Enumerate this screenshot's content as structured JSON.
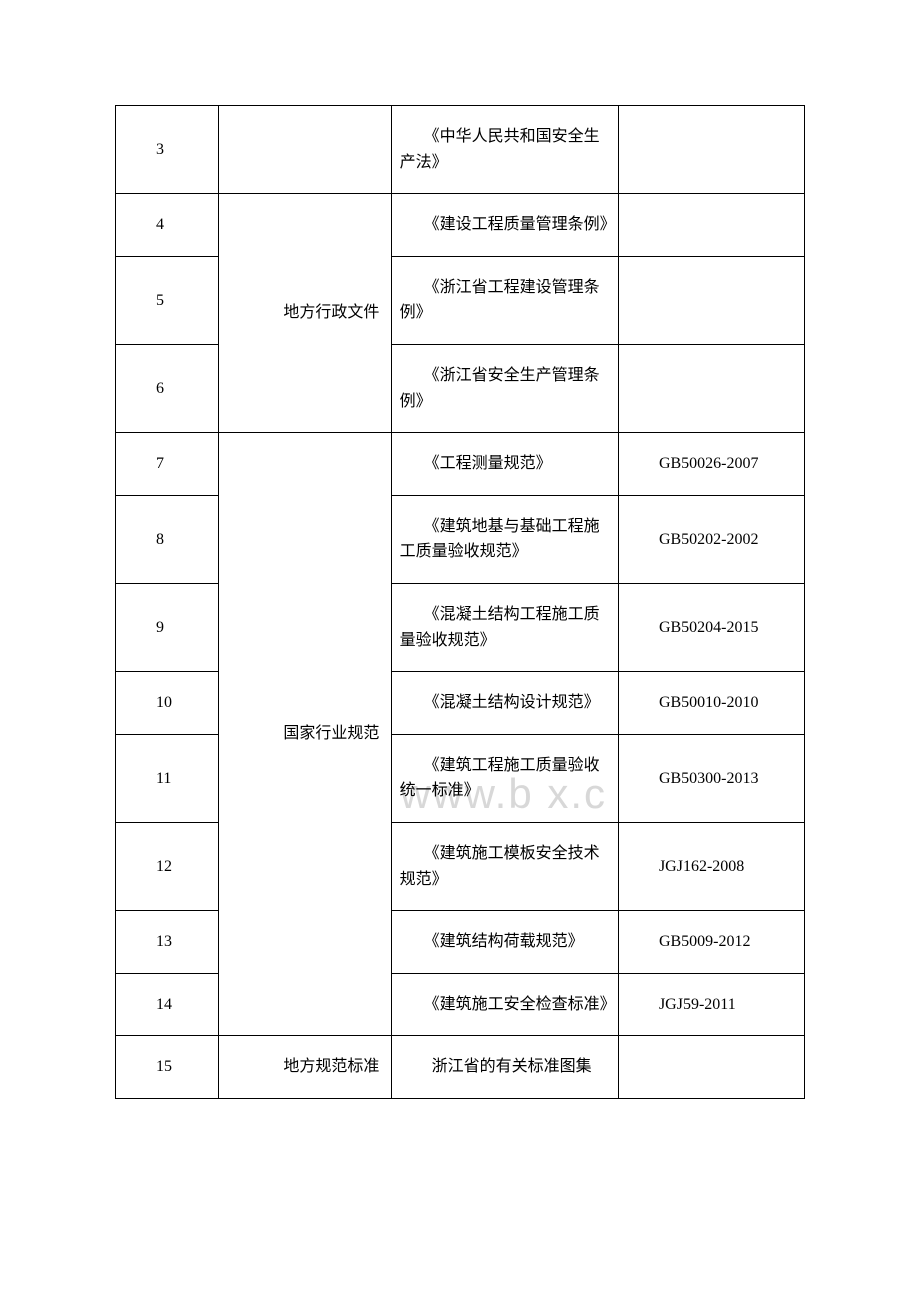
{
  "watermark": "www.b    x.c",
  "columns": {
    "col1_width": "15%",
    "col2_width": "25%",
    "col3_width": "33%",
    "col4_width": "27%"
  },
  "rows": [
    {
      "num": "3",
      "category": "",
      "category_rowspan": 0,
      "title": "　　《中华人民共和国安全生产法》",
      "code": ""
    },
    {
      "num": "4",
      "category": "　　地方行政文件",
      "category_rowspan": 3,
      "title": "　　《建设工程质量管理条例》",
      "code": ""
    },
    {
      "num": "5",
      "category": "",
      "category_rowspan": 0,
      "title": "　　《浙江省工程建设管理条例》",
      "code": ""
    },
    {
      "num": "6",
      "category": "",
      "category_rowspan": 0,
      "title": "　　《浙江省安全生产管理条例》",
      "code": ""
    },
    {
      "num": "7",
      "category": "　　国家行业规范",
      "category_rowspan": 8,
      "title": "　　《工程测量规范》",
      "code": "　　GB50026-2007"
    },
    {
      "num": "8",
      "category": "",
      "category_rowspan": 0,
      "title": "　　《建筑地基与基础工程施工质量验收规范》",
      "code": "　　GB50202-2002"
    },
    {
      "num": "9",
      "category": "",
      "category_rowspan": 0,
      "title": "　　《混凝土结构工程施工质量验收规范》",
      "code": "　　GB50204-2015"
    },
    {
      "num": "10",
      "category": "",
      "category_rowspan": 0,
      "title": "　　《混凝土结构设计规范》",
      "code": "　　GB50010-2010"
    },
    {
      "num": "11",
      "category": "",
      "category_rowspan": 0,
      "title": "　　《建筑工程施工质量验收统一标准》",
      "code": "　　GB50300-2013"
    },
    {
      "num": "12",
      "category": "",
      "category_rowspan": 0,
      "title": "　　《建筑施工模板安全技术规范》",
      "code": "　　JGJ162-2008"
    },
    {
      "num": "13",
      "category": "",
      "category_rowspan": 0,
      "title": "　　《建筑结构荷载规范》",
      "code": "　　GB5009-2012"
    },
    {
      "num": "14",
      "category": "",
      "category_rowspan": 0,
      "title": "　　《建筑施工安全检查标准》",
      "code": "　　JGJ59-2011"
    },
    {
      "num": "15",
      "category": "　　地方规范标准",
      "category_rowspan": 1,
      "title": "　　浙江省的有关标准图集",
      "code": ""
    }
  ],
  "colors": {
    "border": "#000000",
    "text": "#000000",
    "background": "#ffffff",
    "watermark": "#d8d8d8"
  },
  "typography": {
    "font_family": "SimSun",
    "font_size": 16,
    "line_height": 1.6
  }
}
